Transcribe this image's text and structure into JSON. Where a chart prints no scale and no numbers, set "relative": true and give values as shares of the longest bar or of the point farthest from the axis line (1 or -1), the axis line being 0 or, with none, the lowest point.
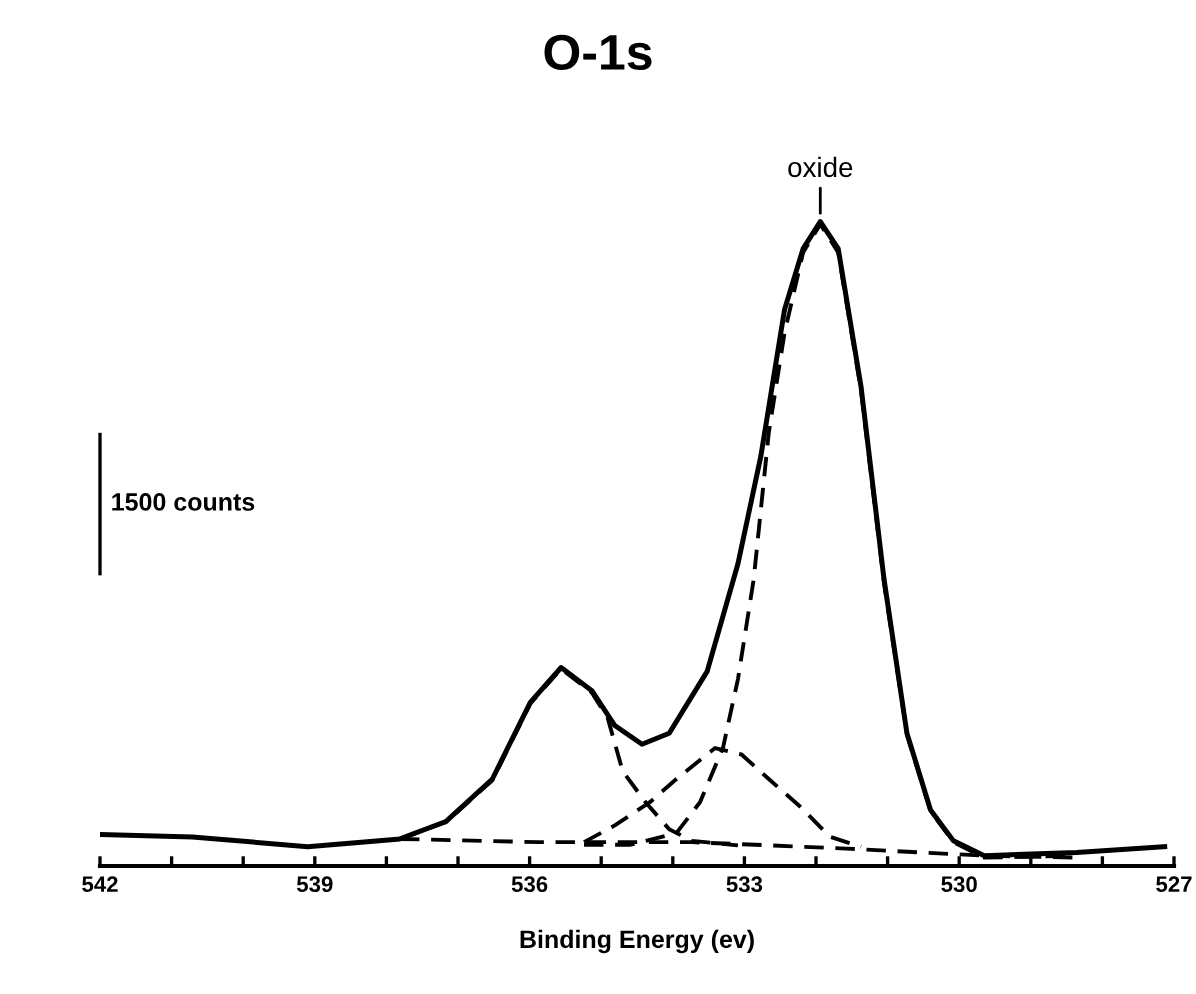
{
  "chart_data": {
    "type": "line",
    "title": "O-1s",
    "xlabel": "Binding Energy (ev)",
    "relative": true,
    "xlim": [
      542,
      527
    ],
    "xticks": [
      542,
      {
        "value": 541,
        "label": null
      },
      {
        "value": 540,
        "label": null
      },
      539,
      {
        "value": 538,
        "label": null
      },
      {
        "value": 537,
        "label": null
      },
      536,
      {
        "value": 535,
        "label": null
      },
      {
        "value": 534,
        "label": null
      },
      533,
      {
        "value": 532,
        "label": null
      },
      {
        "value": 531,
        "label": null
      },
      530,
      {
        "value": 529,
        "label": null
      },
      {
        "value": 528,
        "label": null
      },
      527
    ],
    "annotations": [
      {
        "text": "oxide",
        "x": 531.94,
        "y": 1.0
      },
      "1500 counts"
    ],
    "series": [
      {
        "color": "#000000",
        "line_style": "solid",
        "x": [
          542,
          540.71,
          539.1,
          537.81,
          537.17,
          536.52,
          535.99,
          535.56,
          535.13,
          534.81,
          534.43,
          534.05,
          533.52,
          533.09,
          532.77,
          532.44,
          532.18,
          531.94,
          531.69,
          531.37,
          531.05,
          530.73,
          530.4,
          530.08,
          529.65,
          528.36,
          527.13
        ],
        "values": [
          0.049,
          0.045,
          0.03,
          0.042,
          0.069,
          0.135,
          0.254,
          0.308,
          0.272,
          0.218,
          0.189,
          0.206,
          0.302,
          0.469,
          0.636,
          0.863,
          0.958,
          1.0,
          0.958,
          0.743,
          0.445,
          0.206,
          0.087,
          0.039,
          0.016,
          0.021,
          0.03
        ]
      },
      {
        "color": "#000000",
        "line_style": "dashed",
        "x": [
          535.24,
          534.59,
          533.95,
          533.62,
          533.3,
          533.09,
          532.87,
          532.66,
          532.44,
          532.18,
          531.94,
          531.69,
          531.37,
          531.05,
          530.73,
          530.4,
          530.08,
          529.65,
          528.36
        ],
        "values": [
          0.033,
          0.033,
          0.051,
          0.099,
          0.183,
          0.29,
          0.445,
          0.672,
          0.827,
          0.952,
          0.996,
          0.952,
          0.737,
          0.439,
          0.204,
          0.085,
          0.037,
          0.013,
          0.016
        ]
      },
      {
        "color": "#000000",
        "line_style": "dashed",
        "x": [
          537.81,
          537.17,
          536.52,
          535.99,
          535.56,
          535.13,
          534.91,
          534.7,
          534.38,
          534.05,
          533.73,
          533.09
        ],
        "values": [
          0.042,
          0.068,
          0.133,
          0.252,
          0.306,
          0.269,
          0.23,
          0.147,
          0.099,
          0.057,
          0.039,
          0.032
        ]
      },
      {
        "color": "#000000",
        "line_style": "dashed",
        "x": [
          535.24,
          534.81,
          534.32,
          533.95,
          533.41,
          533.04,
          532.66,
          532.23,
          531.8,
          531.37
        ],
        "values": [
          0.037,
          0.063,
          0.099,
          0.135,
          0.183,
          0.173,
          0.135,
          0.093,
          0.045,
          0.03
        ]
      },
      {
        "color": "#000000",
        "line_style": "dashed",
        "x": [
          537.81,
          535.88,
          533.73,
          531.58,
          529.65,
          528.36
        ],
        "values": [
          0.042,
          0.037,
          0.037,
          0.027,
          0.016,
          0.013
        ]
      }
    ]
  }
}
